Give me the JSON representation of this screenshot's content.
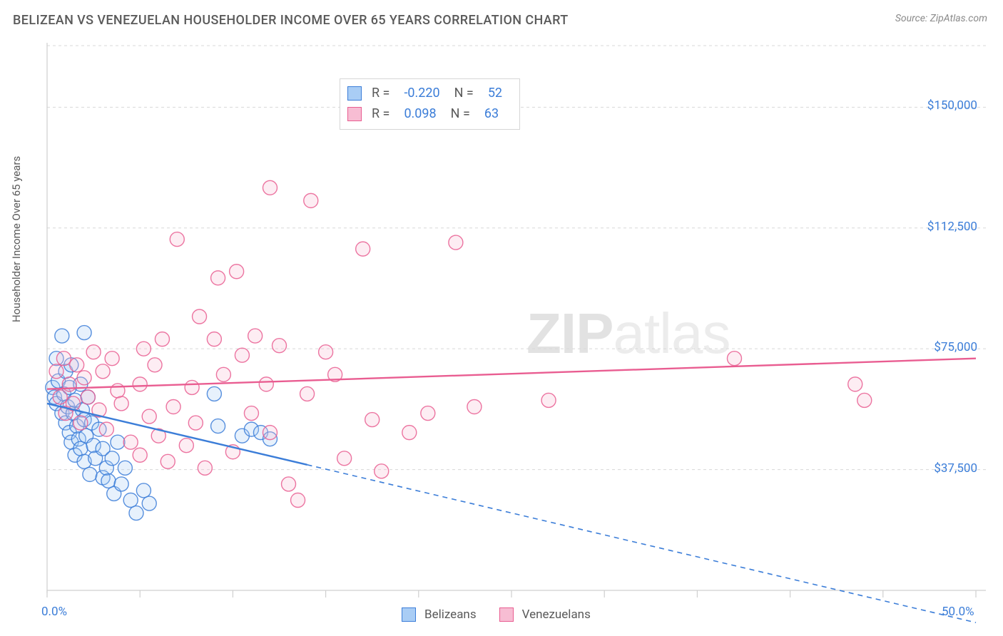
{
  "header": {
    "title": "BELIZEAN VS VENEZUELAN HOUSEHOLDER INCOME OVER 65 YEARS CORRELATION CHART",
    "source": "Source: ZipAtlas.com"
  },
  "yaxis": {
    "label": "Householder Income Over 65 years"
  },
  "watermark": {
    "zip": "ZIP",
    "atlas": "atlas"
  },
  "chart": {
    "type": "scatter",
    "xlim": [
      0,
      50
    ],
    "ylim": [
      0,
      170000
    ],
    "x_ticks": [
      0,
      5,
      10,
      15,
      20,
      25,
      30,
      35,
      40,
      45,
      50
    ],
    "x_tick_labels": {
      "0": "0.0%",
      "50": "50.0%"
    },
    "y_gridlines": [
      37500,
      75000,
      112500,
      150000
    ],
    "y_tick_labels": {
      "37500": "$37,500",
      "75000": "$75,000",
      "112500": "$112,500",
      "150000": "$150,000"
    },
    "grid_color": "#d8d8d8",
    "axis_color": "#cfcfcf",
    "background_color": "#ffffff",
    "marker_radius": 10,
    "marker_fill_opacity": 0.28,
    "marker_stroke_width": 1.4,
    "series": [
      {
        "name": "Belizeans",
        "color_stroke": "#3b7dd8",
        "color_fill": "#a9cdf5",
        "R": "-0.220",
        "N": "52",
        "trend": {
          "x1": 0,
          "y1": 58000,
          "x2_solid": 14,
          "y2_solid": 39000,
          "x2_dash": 50,
          "y2_dash": -10000
        },
        "points": [
          [
            0.3,
            63000
          ],
          [
            0.4,
            60000
          ],
          [
            0.5,
            58000
          ],
          [
            0.6,
            65000
          ],
          [
            0.8,
            55000
          ],
          [
            0.8,
            79000
          ],
          [
            0.9,
            61000
          ],
          [
            1.0,
            52000
          ],
          [
            1.0,
            68000
          ],
          [
            1.1,
            57000
          ],
          [
            1.2,
            49000
          ],
          [
            1.2,
            63000
          ],
          [
            1.3,
            46000
          ],
          [
            1.3,
            70000
          ],
          [
            1.4,
            55000
          ],
          [
            1.5,
            42000
          ],
          [
            1.5,
            59000
          ],
          [
            1.6,
            51000
          ],
          [
            1.7,
            47000
          ],
          [
            1.8,
            64000
          ],
          [
            1.8,
            44000
          ],
          [
            1.9,
            56000
          ],
          [
            2.0,
            40000
          ],
          [
            2.0,
            53000
          ],
          [
            2.1,
            48000
          ],
          [
            2.2,
            60000
          ],
          [
            2.3,
            36000
          ],
          [
            2.4,
            52000
          ],
          [
            2.5,
            45000
          ],
          [
            2.6,
            41000
          ],
          [
            2.8,
            50000
          ],
          [
            3.0,
            35000
          ],
          [
            3.0,
            44000
          ],
          [
            3.2,
            38000
          ],
          [
            3.3,
            34000
          ],
          [
            3.5,
            41000
          ],
          [
            3.6,
            30000
          ],
          [
            3.8,
            46000
          ],
          [
            4.0,
            33000
          ],
          [
            4.2,
            38000
          ],
          [
            4.5,
            28000
          ],
          [
            4.8,
            24000
          ],
          [
            5.2,
            31000
          ],
          [
            5.5,
            27000
          ],
          [
            9.0,
            61000
          ],
          [
            9.2,
            51000
          ],
          [
            10.5,
            48000
          ],
          [
            11.0,
            50000
          ],
          [
            11.5,
            49000
          ],
          [
            12.0,
            47000
          ],
          [
            2.0,
            80000
          ],
          [
            0.5,
            72000
          ]
        ]
      },
      {
        "name": "Venezuelans",
        "color_stroke": "#e95d91",
        "color_fill": "#f7bdd3",
        "R": "0.098",
        "N": "63",
        "trend": {
          "x1": 0,
          "y1": 62500,
          "x2_solid": 50,
          "y2_solid": 72000
        },
        "points": [
          [
            0.5,
            68000
          ],
          [
            0.7,
            60000
          ],
          [
            0.9,
            72000
          ],
          [
            1.0,
            55000
          ],
          [
            1.2,
            64000
          ],
          [
            1.4,
            58000
          ],
          [
            1.6,
            70000
          ],
          [
            1.8,
            52000
          ],
          [
            2.0,
            66000
          ],
          [
            2.2,
            60000
          ],
          [
            2.5,
            74000
          ],
          [
            2.8,
            56000
          ],
          [
            3.0,
            68000
          ],
          [
            3.2,
            50000
          ],
          [
            3.5,
            72000
          ],
          [
            3.8,
            62000
          ],
          [
            4.0,
            58000
          ],
          [
            4.5,
            46000
          ],
          [
            5.0,
            64000
          ],
          [
            5.2,
            75000
          ],
          [
            5.5,
            54000
          ],
          [
            5.8,
            70000
          ],
          [
            6.0,
            48000
          ],
          [
            6.2,
            78000
          ],
          [
            6.5,
            40000
          ],
          [
            6.8,
            57000
          ],
          [
            7.0,
            109000
          ],
          [
            7.5,
            45000
          ],
          [
            7.8,
            63000
          ],
          [
            8.0,
            52000
          ],
          [
            8.2,
            85000
          ],
          [
            8.5,
            38000
          ],
          [
            9.0,
            78000
          ],
          [
            9.2,
            97000
          ],
          [
            9.5,
            67000
          ],
          [
            10.0,
            43000
          ],
          [
            10.2,
            99000
          ],
          [
            10.5,
            73000
          ],
          [
            11.0,
            55000
          ],
          [
            11.2,
            79000
          ],
          [
            11.8,
            64000
          ],
          [
            12.0,
            125000
          ],
          [
            12.0,
            49000
          ],
          [
            12.5,
            76000
          ],
          [
            13.0,
            33000
          ],
          [
            13.5,
            28000
          ],
          [
            14.0,
            61000
          ],
          [
            14.2,
            121000
          ],
          [
            15.0,
            74000
          ],
          [
            15.5,
            67000
          ],
          [
            16.0,
            41000
          ],
          [
            17.0,
            106000
          ],
          [
            17.5,
            53000
          ],
          [
            18.0,
            37000
          ],
          [
            19.5,
            49000
          ],
          [
            20.5,
            55000
          ],
          [
            22.0,
            108000
          ],
          [
            23.0,
            57000
          ],
          [
            27.0,
            59000
          ],
          [
            37.0,
            72000
          ],
          [
            43.5,
            64000
          ],
          [
            44.0,
            59000
          ],
          [
            5.0,
            42000
          ]
        ]
      }
    ]
  },
  "legend_bottom": {
    "items": [
      "Belizeans",
      "Venezuelans"
    ]
  }
}
